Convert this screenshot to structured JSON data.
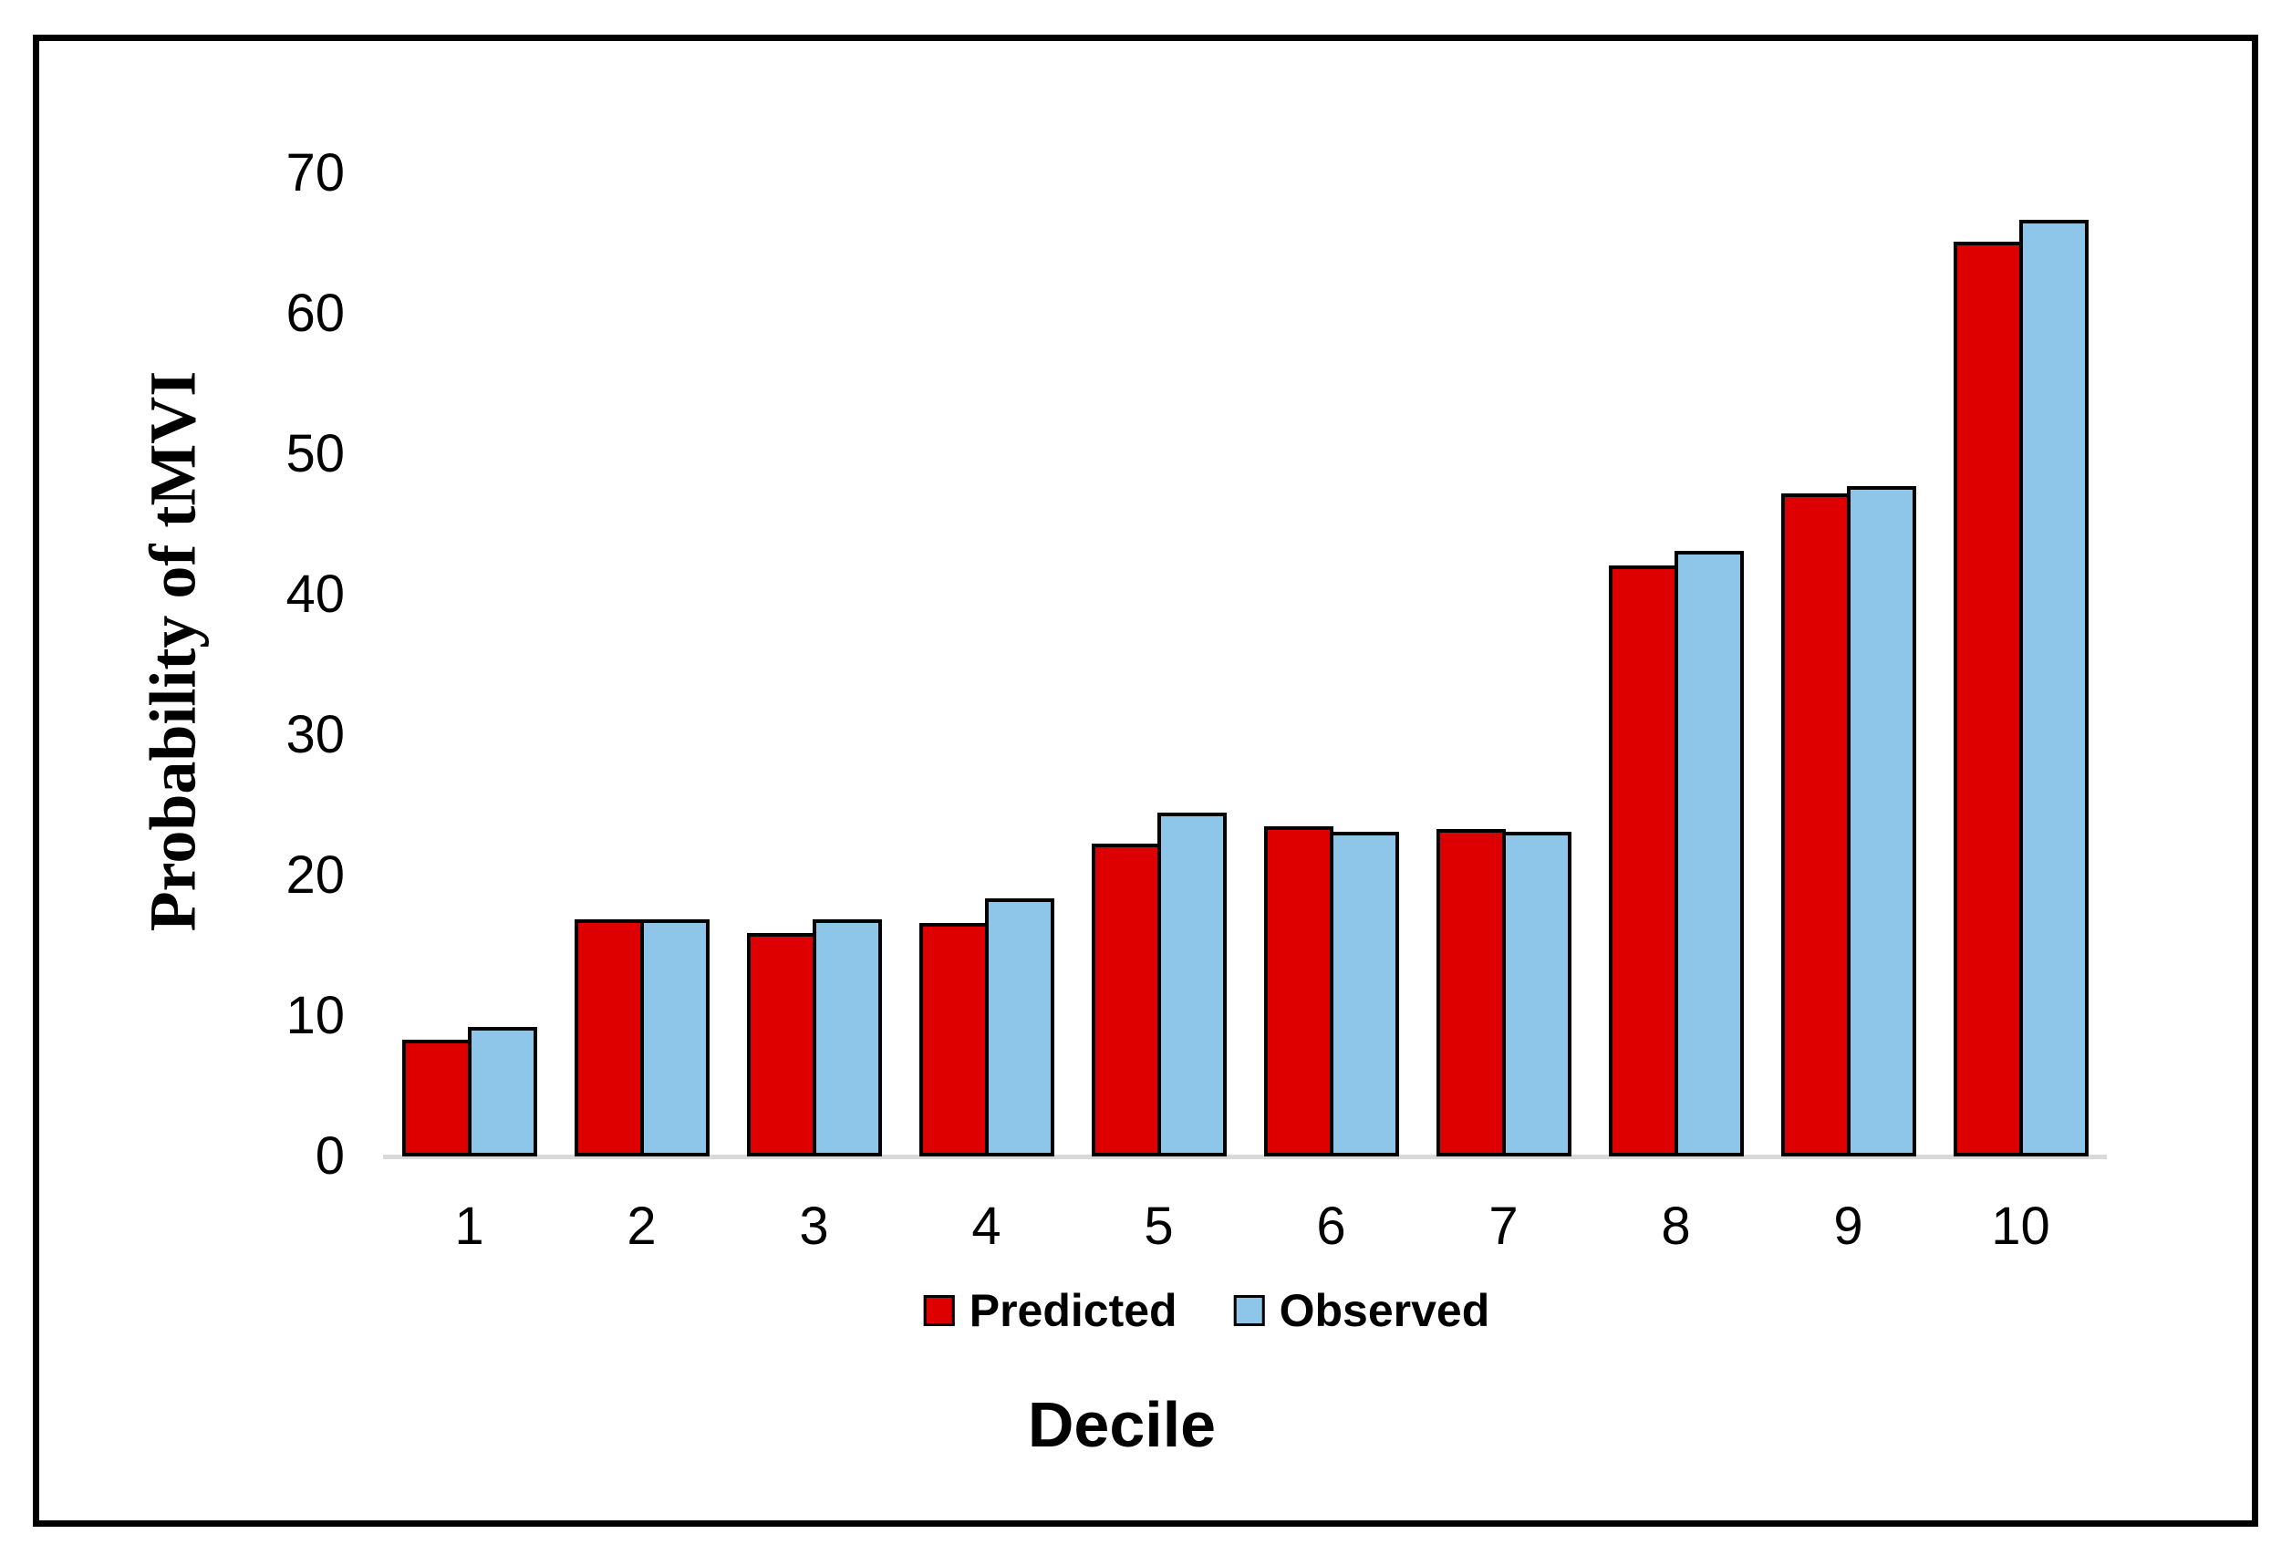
{
  "figure": {
    "background_color": "#FFFFFF",
    "frame_border_color": "#000000"
  },
  "chart_data": {
    "type": "bar",
    "title": "",
    "xlabel": "Decile",
    "ylabel": "Probability of tMVI",
    "categories": [
      "1",
      "2",
      "3",
      "4",
      "5",
      "6",
      "7",
      "8",
      "9",
      "10"
    ],
    "series": [
      {
        "name": "Predicted",
        "color": "#DE0000",
        "values": [
          8.3,
          16.9,
          15.9,
          16.6,
          22.3,
          23.5,
          23.3,
          42.1,
          47.2,
          65.1
        ]
      },
      {
        "name": "Observed",
        "color": "#8DC6E8",
        "values": [
          9.2,
          16.9,
          16.9,
          18.4,
          24.5,
          23.1,
          23.1,
          43.1,
          47.7,
          66.7
        ]
      }
    ],
    "ylim": [
      0,
      70
    ],
    "yticks": [
      0,
      10,
      20,
      30,
      40,
      50,
      60,
      70
    ],
    "grid": false,
    "legend_position": "bottom",
    "axis_line_color": "#D9D9D9",
    "bar_outline_color": "#000000"
  }
}
